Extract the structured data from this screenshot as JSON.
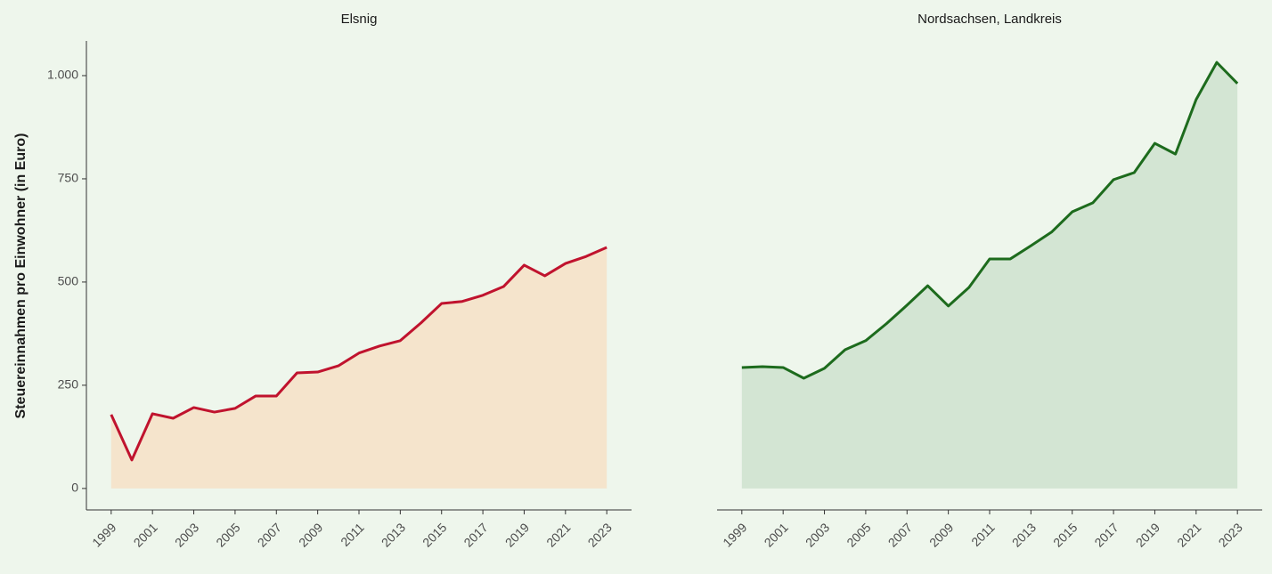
{
  "chart_data": [
    {
      "type": "area",
      "title": "Elsnig",
      "ylabel": "Steuereinnahmen pro Einwohner (in Euro)",
      "x": [
        1999,
        2000,
        2001,
        2002,
        2003,
        2004,
        2005,
        2006,
        2007,
        2008,
        2009,
        2010,
        2011,
        2012,
        2013,
        2014,
        2015,
        2016,
        2017,
        2018,
        2019,
        2020,
        2021,
        2022,
        2023
      ],
      "series": [
        {
          "color": "#c0132e",
          "fill": "#f5e4cc",
          "values": [
            179,
            69,
            181,
            170,
            196,
            185,
            194,
            224,
            224,
            280,
            282,
            297,
            328,
            345,
            358,
            401,
            448,
            453,
            468,
            489,
            541,
            515,
            545,
            562,
            584
          ]
        }
      ],
      "xlim": [
        1997.8,
        2024.2
      ],
      "xticks": [
        1999,
        2001,
        2003,
        2005,
        2007,
        2009,
        2011,
        2013,
        2015,
        2017,
        2019,
        2021,
        2023
      ],
      "ylim": [
        -52,
        1084
      ],
      "yticks": [
        0,
        250,
        500,
        750,
        {
          "value": 1000,
          "label": "1.000"
        }
      ]
    },
    {
      "type": "area",
      "title": "Nordsachsen, Landkreis",
      "x": [
        1999,
        2000,
        2001,
        2002,
        2003,
        2004,
        2005,
        2006,
        2007,
        2008,
        2009,
        2010,
        2011,
        2012,
        2013,
        2014,
        2015,
        2016,
        2017,
        2018,
        2019,
        2020,
        2021,
        2022,
        2023
      ],
      "series": [
        {
          "color": "#1d6b1d",
          "fill": "#d3e5d3",
          "values": [
            293,
            295,
            293,
            267,
            291,
            336,
            358,
            399,
            444,
            491,
            442,
            487,
            556,
            556,
            588,
            621,
            670,
            692,
            748,
            765,
            836,
            810,
            942,
            1032,
            981
          ]
        }
      ],
      "xlim": [
        1997.8,
        2024.2
      ],
      "xticks": [
        1999,
        2001,
        2003,
        2005,
        2007,
        2009,
        2011,
        2013,
        2015,
        2017,
        2019,
        2021,
        2023
      ],
      "ylim": [
        -52,
        1084
      ]
    }
  ]
}
